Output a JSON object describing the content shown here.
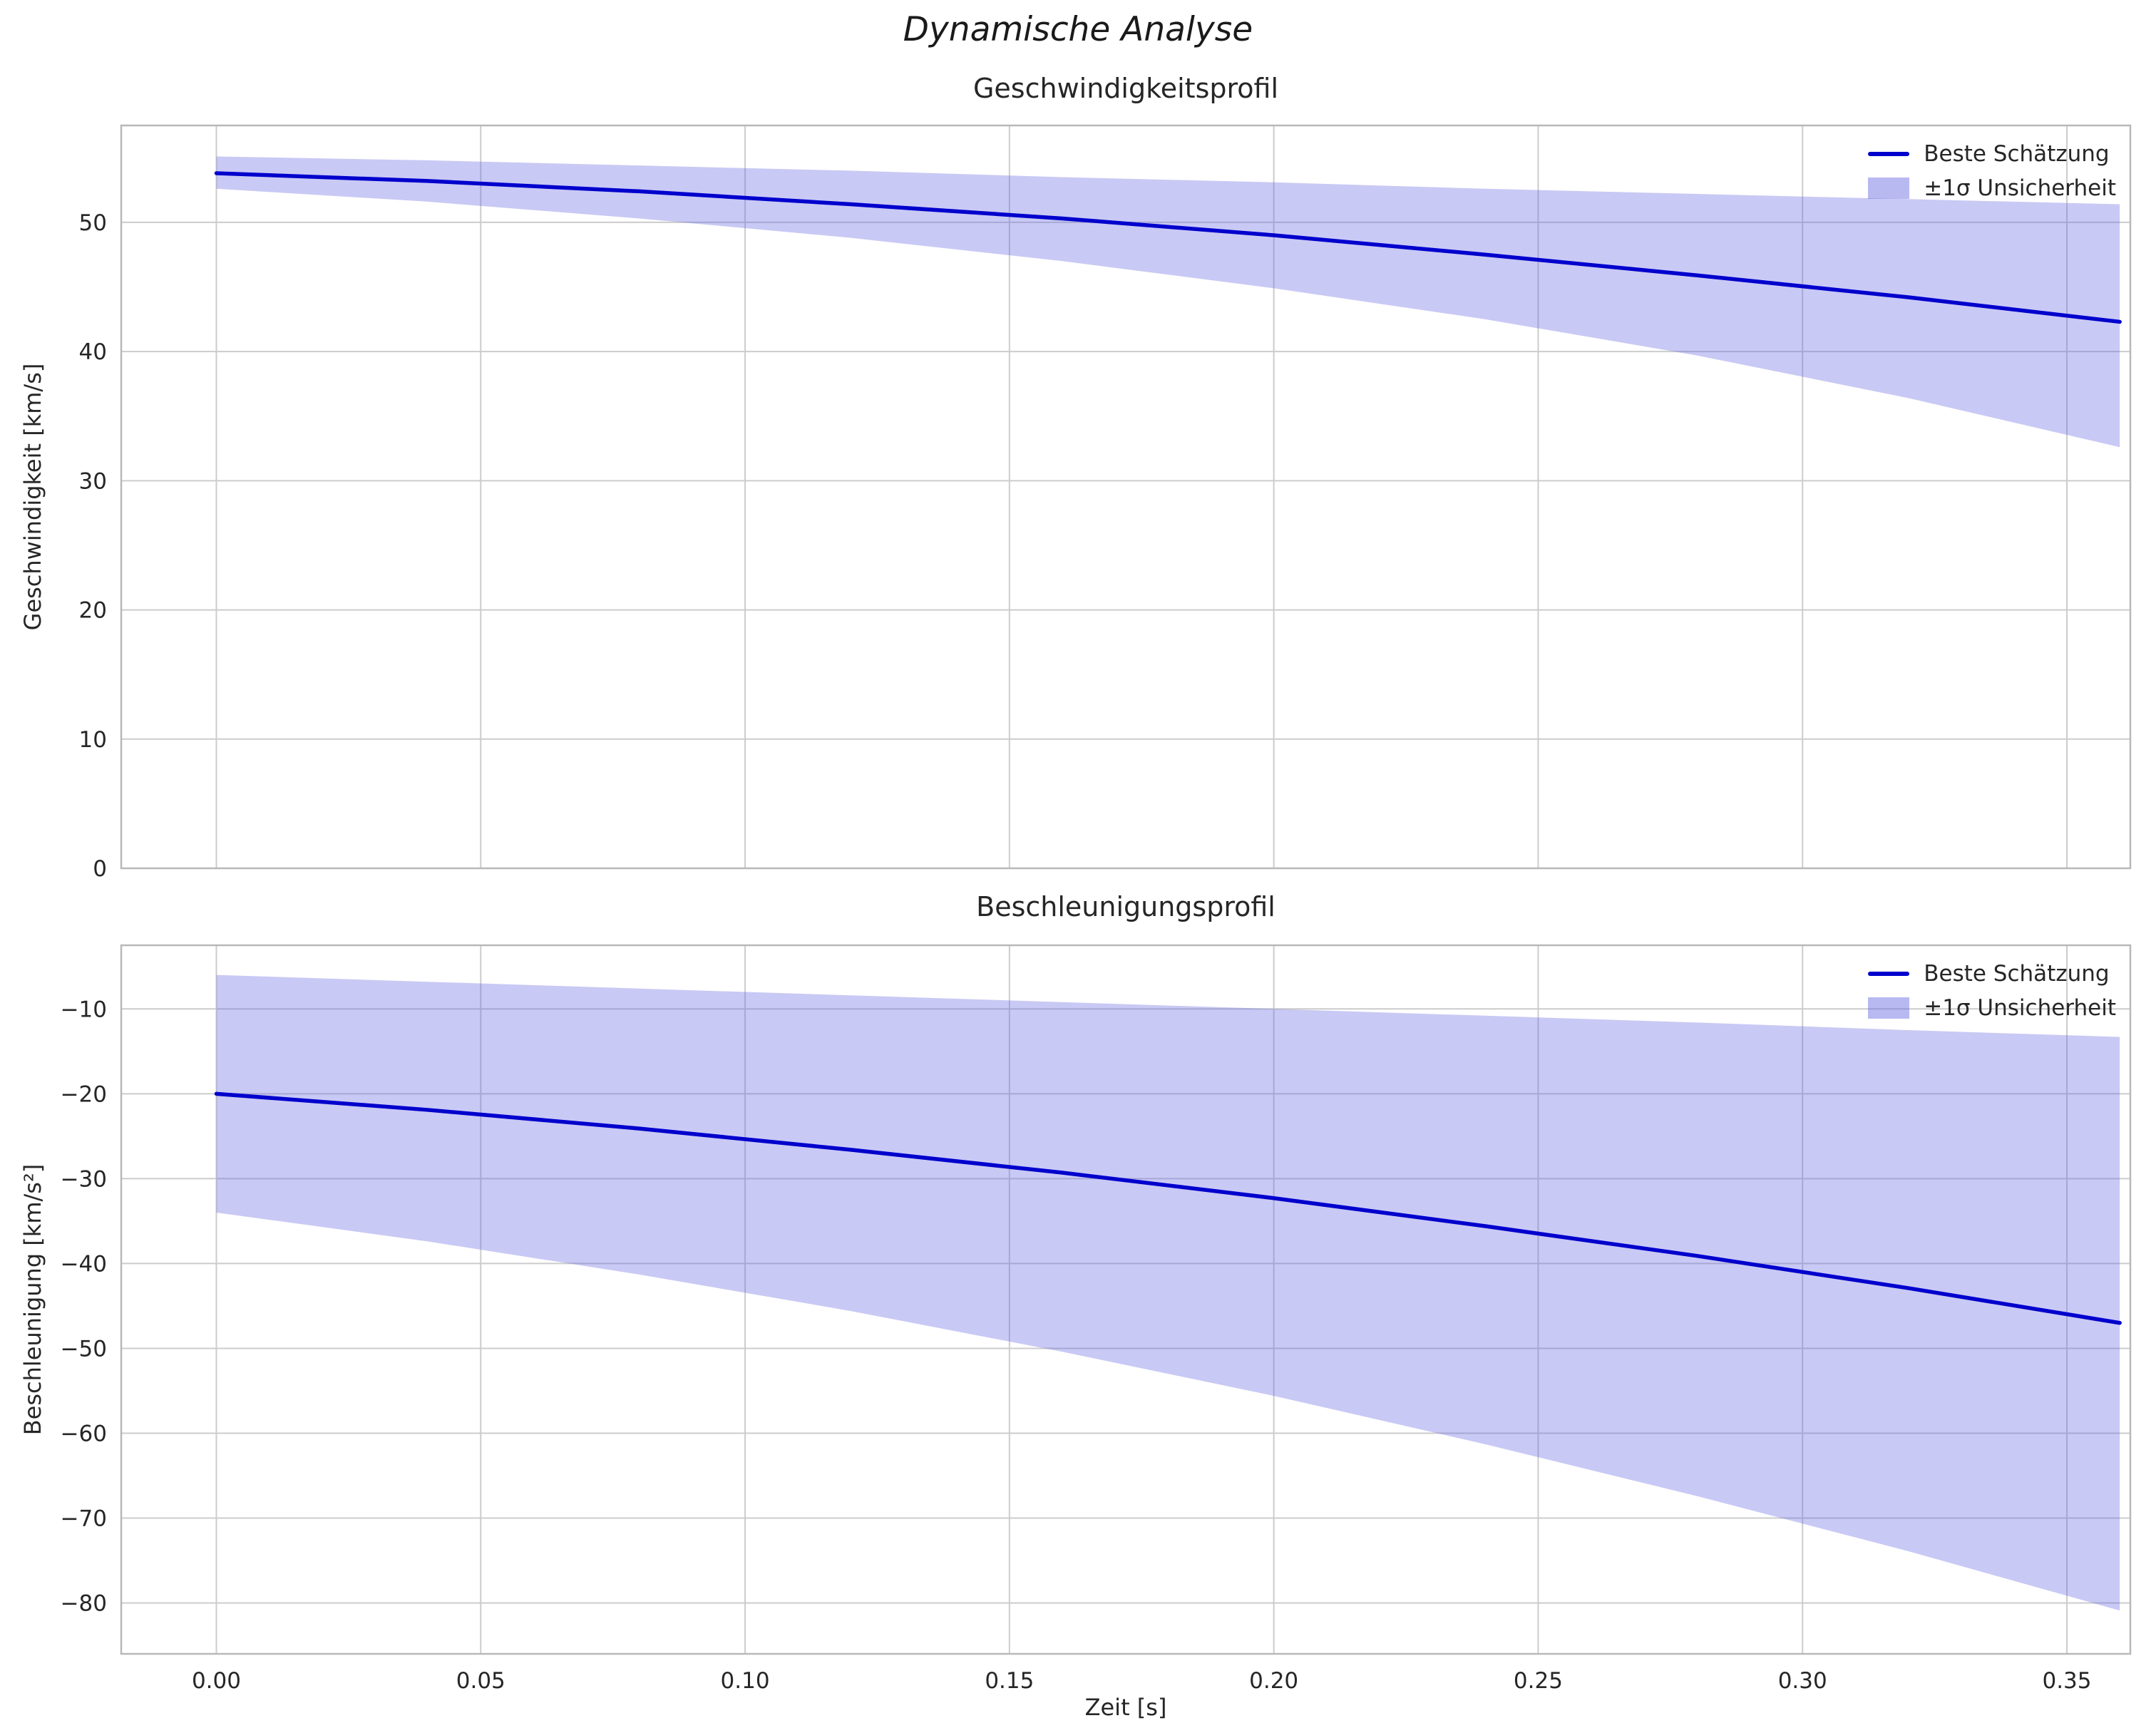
{
  "figure": {
    "title": "Dynamische Analyse"
  },
  "colors": {
    "line": "#0000cd",
    "band": "#6464e1",
    "band_opacity": 0.35,
    "grid": "#cccccc",
    "spine": "#b8b8b8",
    "text": "#262626"
  },
  "chart_data": [
    {
      "type": "line",
      "title": "Geschwindigkeitsprofil",
      "xlabel": "",
      "ylabel": "Geschwindigkeit [km/s]",
      "xlim": [
        -0.018,
        0.362
      ],
      "ylim": [
        0,
        57.5
      ],
      "grid": true,
      "legend_location": "upper right",
      "legend": [
        "Beste Schätzung",
        "±1σ Unsicherheit"
      ],
      "xticks": [
        0.0,
        0.05,
        0.1,
        0.15,
        0.2,
        0.25,
        0.3,
        0.35
      ],
      "yticks": [
        0,
        10,
        20,
        30,
        40,
        50
      ],
      "ytick_labels": [
        "0",
        "10",
        "20",
        "30",
        "40",
        "50"
      ],
      "x": [
        0.0,
        0.04,
        0.08,
        0.12,
        0.16,
        0.2,
        0.24,
        0.28,
        0.32,
        0.36
      ],
      "series": [
        {
          "name": "Beste Schätzung",
          "values": [
            53.8,
            53.2,
            52.4,
            51.4,
            50.3,
            49.0,
            47.5,
            45.9,
            44.2,
            42.3
          ]
        }
      ],
      "band": {
        "name": "±1σ Unsicherheit",
        "upper": [
          55.1,
          54.8,
          54.4,
          54.0,
          53.5,
          53.1,
          52.6,
          52.2,
          51.8,
          51.4
        ],
        "lower": [
          52.6,
          51.6,
          50.3,
          48.8,
          47.0,
          44.9,
          42.5,
          39.7,
          36.4,
          32.6
        ]
      }
    },
    {
      "type": "line",
      "title": "Beschleunigungsprofil",
      "xlabel": "Zeit [s]",
      "ylabel": "Beschleunigung [km/s²]",
      "xlim": [
        -0.018,
        0.362
      ],
      "ylim": [
        -86,
        -2.5
      ],
      "grid": true,
      "legend_location": "upper right",
      "legend": [
        "Beste Schätzung",
        "±1σ Unsicherheit"
      ],
      "xticks": [
        0.0,
        0.05,
        0.1,
        0.15,
        0.2,
        0.25,
        0.3,
        0.35
      ],
      "xtick_labels": [
        "0.00",
        "0.05",
        "0.10",
        "0.15",
        "0.20",
        "0.25",
        "0.30",
        "0.35"
      ],
      "yticks": [
        -80,
        -70,
        -60,
        -50,
        -40,
        -30,
        -20,
        -10
      ],
      "ytick_labels": [
        "−80",
        "−70",
        "−60",
        "−50",
        "−40",
        "−30",
        "−20",
        "−10"
      ],
      "x": [
        0.0,
        0.04,
        0.08,
        0.12,
        0.16,
        0.2,
        0.24,
        0.28,
        0.32,
        0.36
      ],
      "series": [
        {
          "name": "Beste Schätzung",
          "values": [
            -20.0,
            -21.9,
            -24.1,
            -26.6,
            -29.3,
            -32.3,
            -35.6,
            -39.1,
            -42.9,
            -47.0
          ]
        }
      ],
      "band": {
        "name": "±1σ Unsicherheit",
        "upper": [
          -6.0,
          -6.8,
          -7.6,
          -8.4,
          -9.2,
          -10.0,
          -10.8,
          -11.6,
          -12.5,
          -13.3
        ],
        "lower": [
          -34.0,
          -37.4,
          -41.3,
          -45.6,
          -50.4,
          -55.6,
          -61.3,
          -67.4,
          -73.9,
          -80.9
        ]
      }
    }
  ]
}
